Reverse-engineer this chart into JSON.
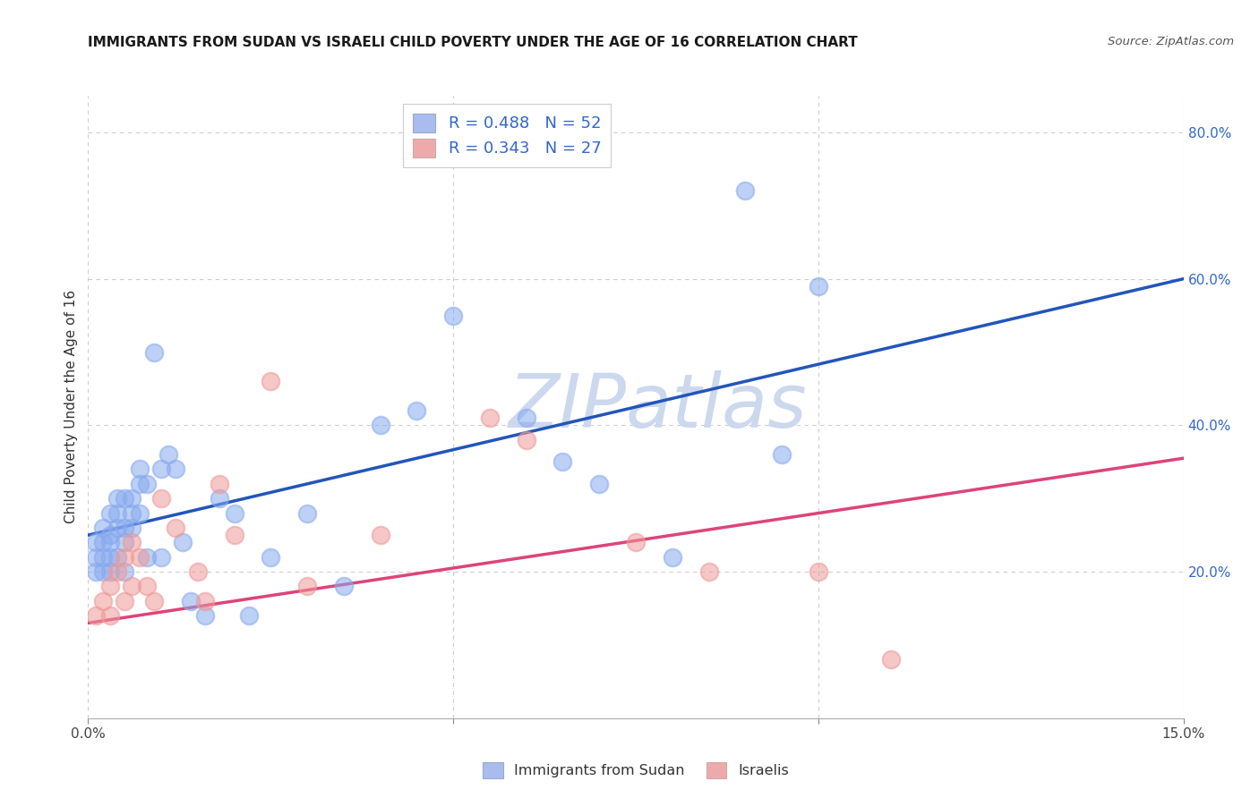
{
  "title": "IMMIGRANTS FROM SUDAN VS ISRAELI CHILD POVERTY UNDER THE AGE OF 16 CORRELATION CHART",
  "source": "Source: ZipAtlas.com",
  "ylabel": "Child Poverty Under the Age of 16",
  "xlim": [
    0,
    0.15
  ],
  "ylim": [
    0,
    0.85
  ],
  "xticks": [
    0.0,
    0.05,
    0.1,
    0.15
  ],
  "xticklabels": [
    "0.0%",
    "",
    "",
    "15.0%"
  ],
  "yticks_right": [
    0.2,
    0.4,
    0.6,
    0.8
  ],
  "ytick_right_labels": [
    "20.0%",
    "40.0%",
    "60.0%",
    "80.0%"
  ],
  "grid_color": "#cccccc",
  "background_color": "#ffffff",
  "blue_scatter_color": "#88aaee",
  "pink_scatter_color": "#ee9999",
  "blue_line_color": "#2255bb",
  "pink_line_color": "#dd4477",
  "right_axis_color": "#3366cc",
  "watermark_color": "#ccd8ee",
  "watermark": "ZIPatlas",
  "legend_labels": [
    "R = 0.488   N = 52",
    "R = 0.343   N = 27"
  ],
  "legend_colors": [
    "#aabbee",
    "#eeaaaa"
  ],
  "legend2_labels": [
    "Immigrants from Sudan",
    "Israelis"
  ],
  "legend2_colors": [
    "#aabbee",
    "#eeaaaa"
  ],
  "blue_line_x": [
    0.0,
    0.15
  ],
  "blue_line_y": [
    0.25,
    0.6
  ],
  "pink_line_x": [
    0.0,
    0.15
  ],
  "pink_line_y": [
    0.13,
    0.355
  ],
  "blue_x": [
    0.001,
    0.001,
    0.001,
    0.002,
    0.002,
    0.002,
    0.002,
    0.003,
    0.003,
    0.003,
    0.003,
    0.003,
    0.004,
    0.004,
    0.004,
    0.004,
    0.005,
    0.005,
    0.005,
    0.005,
    0.006,
    0.006,
    0.006,
    0.007,
    0.007,
    0.007,
    0.008,
    0.008,
    0.009,
    0.01,
    0.01,
    0.011,
    0.012,
    0.013,
    0.014,
    0.016,
    0.018,
    0.02,
    0.022,
    0.025,
    0.03,
    0.035,
    0.04,
    0.045,
    0.05,
    0.06,
    0.065,
    0.07,
    0.08,
    0.09,
    0.095,
    0.1
  ],
  "blue_y": [
    0.2,
    0.22,
    0.24,
    0.22,
    0.24,
    0.26,
    0.2,
    0.25,
    0.28,
    0.24,
    0.22,
    0.2,
    0.3,
    0.26,
    0.28,
    0.22,
    0.3,
    0.26,
    0.24,
    0.2,
    0.3,
    0.28,
    0.26,
    0.34,
    0.32,
    0.28,
    0.32,
    0.22,
    0.5,
    0.34,
    0.22,
    0.36,
    0.34,
    0.24,
    0.16,
    0.14,
    0.3,
    0.28,
    0.14,
    0.22,
    0.28,
    0.18,
    0.4,
    0.42,
    0.55,
    0.41,
    0.35,
    0.32,
    0.22,
    0.72,
    0.36,
    0.59
  ],
  "pink_x": [
    0.001,
    0.002,
    0.003,
    0.003,
    0.004,
    0.005,
    0.005,
    0.006,
    0.006,
    0.007,
    0.008,
    0.009,
    0.01,
    0.012,
    0.015,
    0.016,
    0.018,
    0.02,
    0.025,
    0.03,
    0.04,
    0.055,
    0.06,
    0.075,
    0.085,
    0.1,
    0.11
  ],
  "pink_y": [
    0.14,
    0.16,
    0.18,
    0.14,
    0.2,
    0.22,
    0.16,
    0.24,
    0.18,
    0.22,
    0.18,
    0.16,
    0.3,
    0.26,
    0.2,
    0.16,
    0.32,
    0.25,
    0.46,
    0.18,
    0.25,
    0.41,
    0.38,
    0.24,
    0.2,
    0.2,
    0.08
  ]
}
